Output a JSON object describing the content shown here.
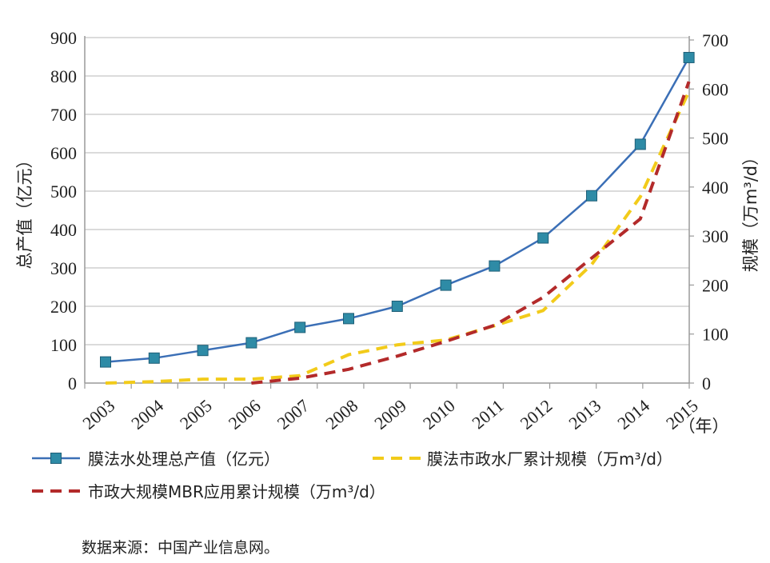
{
  "chart_data": {
    "type": "line",
    "x": [
      "2003",
      "2004",
      "2005",
      "2006",
      "2007",
      "2008",
      "2009",
      "2010",
      "2011",
      "2012",
      "2013",
      "2014",
      "2015"
    ],
    "x_unit_label": "（年）",
    "y_left": {
      "label": "总产值（亿元）",
      "range": [
        0,
        900
      ],
      "ticks": [
        0,
        100,
        200,
        300,
        400,
        500,
        600,
        700,
        800,
        900
      ]
    },
    "y_right": {
      "label": "规模（万m³/d）",
      "range": [
        0,
        700
      ],
      "ticks": [
        0,
        100,
        200,
        300,
        400,
        500,
        600,
        700
      ]
    },
    "grid": true,
    "legend_placement": "bottom",
    "series": [
      {
        "name": "膜法水处理总产值（亿元）",
        "axis": "left",
        "style": "solid-square-markers",
        "color": "#3b6fb6",
        "values": [
          55,
          65,
          85,
          105,
          145,
          168,
          200,
          255,
          305,
          378,
          488,
          622,
          848
        ]
      },
      {
        "name": "膜法市政水厂累计规模（万m³/d）",
        "axis": "right",
        "style": "dashed",
        "color": "#f2cb1a",
        "values": [
          0,
          3,
          8,
          8,
          15,
          58,
          78,
          88,
          117,
          148,
          242,
          380,
          595
        ]
      },
      {
        "name": "市政大规模MBR应用累计规模（万m³/d）",
        "axis": "right",
        "style": "dashed",
        "color": "#b32a2a",
        "values": [
          null,
          null,
          null,
          0,
          10,
          28,
          55,
          85,
          118,
          175,
          255,
          335,
          615
        ]
      }
    ]
  },
  "source_text": "数据来源：中国产业信息网。"
}
